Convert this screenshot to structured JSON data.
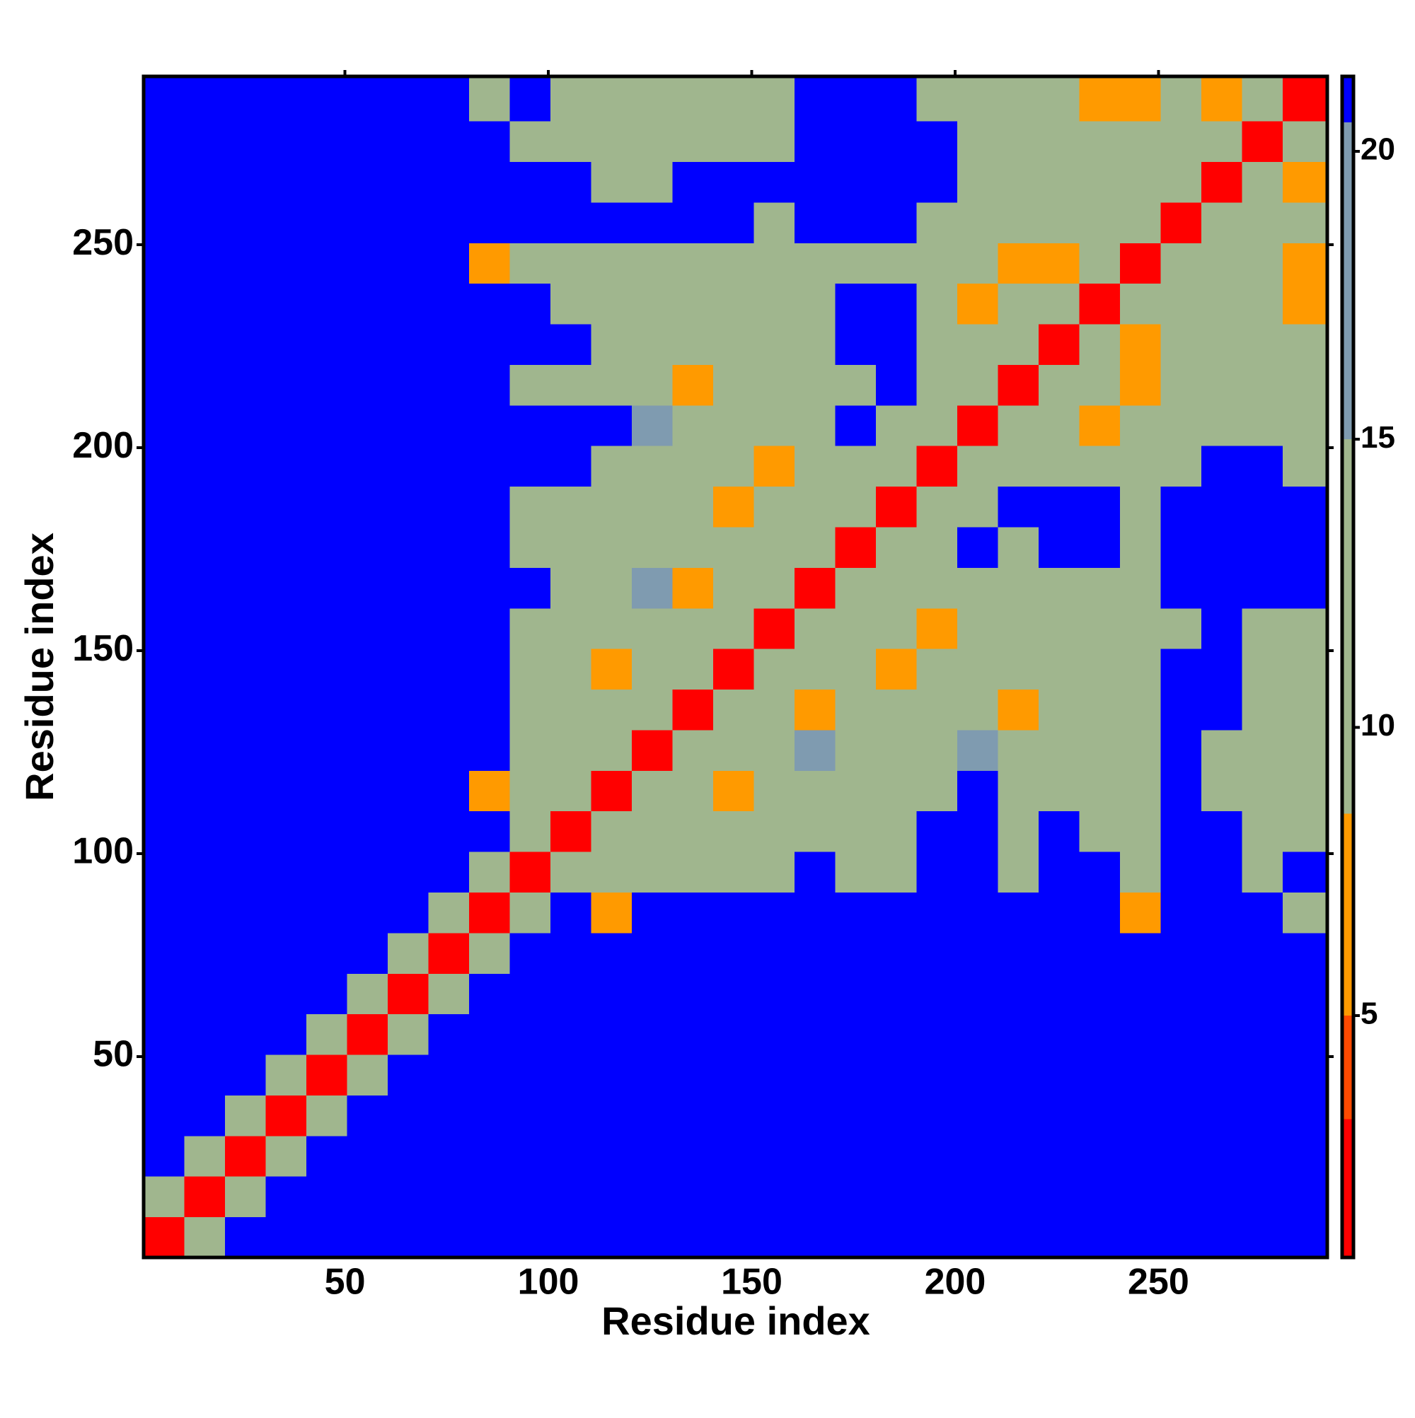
{
  "chart_data": {
    "type": "heatmap",
    "xlabel": "Residue index",
    "ylabel": "Residue index",
    "xlim": [
      0.5,
      291.5
    ],
    "ylim": [
      0.5,
      291.5
    ],
    "xticks": [
      50,
      100,
      150,
      200,
      250
    ],
    "yticks": [
      50,
      100,
      150,
      200,
      250
    ],
    "xbins": [
      0.5,
      10.5,
      20.5,
      30.5,
      40.5,
      50.5,
      60.5,
      70.5,
      80.5,
      90.5,
      100.5,
      110.5,
      120.5,
      130.5,
      140.5,
      150.5,
      160.5,
      170.5,
      180.5,
      190.5,
      200.5,
      210.5,
      220.5,
      230.5,
      240.5,
      250.5,
      260.5,
      270.5,
      280.5,
      291.5
    ],
    "ybins": [
      0.5,
      10.5,
      20.5,
      30.5,
      40.5,
      50.5,
      60.5,
      70.5,
      80.5,
      90.5,
      100.5,
      110.5,
      120.5,
      130.5,
      140.5,
      150.5,
      160.5,
      170.5,
      180.5,
      190.5,
      200.5,
      210.5,
      220.5,
      230.5,
      240.5,
      250.5,
      260.5,
      270.5,
      280.5,
      291.5
    ],
    "zlim": [
      0.8,
      21.3
    ],
    "zticks": [
      5,
      10,
      15,
      20
    ],
    "colorscale": [
      [
        3.2,
        "#ff0000"
      ],
      [
        5,
        "#ff4a00"
      ],
      [
        8.5,
        "#ff9a00"
      ],
      [
        15,
        "#a0b68e"
      ],
      [
        20.5,
        "#7f9bb0"
      ],
      [
        21.3,
        "#0000ff"
      ]
    ],
    "values": [
      [
        3,
        10,
        21,
        21,
        21,
        21,
        21,
        21,
        21,
        21,
        21,
        21,
        21,
        21,
        21,
        21,
        21,
        21,
        21,
        21,
        21,
        21,
        21,
        21,
        21,
        21,
        21,
        21,
        21
      ],
      [
        10,
        3,
        10,
        21,
        21,
        21,
        21,
        21,
        21,
        21,
        21,
        21,
        21,
        21,
        21,
        21,
        21,
        21,
        21,
        21,
        21,
        21,
        21,
        21,
        21,
        21,
        21,
        21,
        21
      ],
      [
        21,
        10,
        3,
        10,
        21,
        21,
        21,
        21,
        21,
        21,
        21,
        21,
        21,
        21,
        21,
        21,
        21,
        21,
        21,
        21,
        21,
        21,
        21,
        21,
        21,
        21,
        21,
        21,
        21
      ],
      [
        21,
        21,
        10,
        3,
        10,
        21,
        21,
        21,
        21,
        21,
        21,
        21,
        21,
        21,
        21,
        21,
        21,
        21,
        21,
        21,
        21,
        21,
        21,
        21,
        21,
        21,
        21,
        21,
        21
      ],
      [
        21,
        21,
        21,
        10,
        3,
        10,
        21,
        21,
        21,
        21,
        21,
        21,
        21,
        21,
        21,
        21,
        21,
        21,
        21,
        21,
        21,
        21,
        21,
        21,
        21,
        21,
        21,
        21,
        21
      ],
      [
        21,
        21,
        21,
        21,
        10,
        3,
        10,
        21,
        21,
        21,
        21,
        21,
        21,
        21,
        21,
        21,
        21,
        21,
        21,
        21,
        21,
        21,
        21,
        21,
        21,
        21,
        21,
        21,
        21
      ],
      [
        21,
        21,
        21,
        21,
        21,
        10,
        3,
        10,
        21,
        21,
        21,
        21,
        21,
        21,
        21,
        21,
        21,
        21,
        21,
        21,
        21,
        21,
        21,
        21,
        21,
        21,
        21,
        21,
        21
      ],
      [
        21,
        21,
        21,
        21,
        21,
        21,
        10,
        3,
        10,
        21,
        21,
        21,
        21,
        21,
        21,
        21,
        21,
        21,
        21,
        21,
        21,
        21,
        21,
        21,
        21,
        21,
        21,
        21,
        21
      ],
      [
        21,
        21,
        21,
        21,
        21,
        21,
        21,
        10,
        3,
        10,
        21,
        7,
        21,
        21,
        21,
        21,
        21,
        21,
        21,
        21,
        21,
        21,
        21,
        21,
        7,
        21,
        21,
        21,
        13
      ],
      [
        21,
        21,
        21,
        21,
        21,
        21,
        21,
        21,
        10,
        3,
        9,
        13,
        13,
        13,
        13,
        13,
        21,
        13,
        13,
        21,
        21,
        13,
        21,
        21,
        13,
        21,
        21,
        13,
        21
      ],
      [
        21,
        21,
        21,
        21,
        21,
        21,
        21,
        21,
        21,
        9,
        3,
        9,
        13,
        13,
        13,
        13,
        13,
        13,
        13,
        21,
        21,
        13,
        21,
        13,
        13,
        21,
        21,
        13,
        13
      ],
      [
        21,
        21,
        21,
        21,
        21,
        21,
        21,
        21,
        7,
        13,
        9,
        3,
        9,
        13,
        7,
        13,
        13,
        13,
        13,
        13,
        21,
        13,
        13,
        13,
        13,
        21,
        13,
        13,
        13
      ],
      [
        21,
        21,
        21,
        21,
        21,
        21,
        21,
        21,
        21,
        13,
        13,
        9,
        3,
        9,
        13,
        13,
        16,
        13,
        13,
        13,
        16,
        13,
        13,
        13,
        13,
        21,
        13,
        13,
        13
      ],
      [
        21,
        21,
        21,
        21,
        21,
        21,
        21,
        21,
        21,
        13,
        13,
        13,
        9,
        3,
        9,
        13,
        7,
        13,
        13,
        13,
        13,
        7,
        13,
        13,
        13,
        21,
        21,
        13,
        13
      ],
      [
        21,
        21,
        21,
        21,
        21,
        21,
        21,
        21,
        21,
        13,
        13,
        7,
        13,
        9,
        3,
        9,
        13,
        13,
        7,
        13,
        13,
        13,
        13,
        13,
        13,
        21,
        21,
        13,
        13
      ],
      [
        21,
        21,
        21,
        21,
        21,
        21,
        21,
        21,
        21,
        13,
        13,
        13,
        13,
        13,
        9,
        3,
        9,
        13,
        13,
        7,
        13,
        13,
        13,
        13,
        13,
        13,
        21,
        13,
        13
      ],
      [
        21,
        21,
        21,
        21,
        21,
        21,
        21,
        21,
        21,
        21,
        13,
        13,
        16,
        7,
        13,
        9,
        3,
        9,
        13,
        13,
        13,
        13,
        13,
        13,
        13,
        21,
        21,
        21,
        21
      ],
      [
        21,
        21,
        21,
        21,
        21,
        21,
        21,
        21,
        21,
        13,
        13,
        13,
        13,
        13,
        13,
        13,
        9,
        3,
        9,
        13,
        21,
        13,
        21,
        21,
        13,
        21,
        21,
        21,
        21
      ],
      [
        21,
        21,
        21,
        21,
        21,
        21,
        21,
        21,
        21,
        13,
        13,
        13,
        13,
        13,
        7,
        13,
        13,
        9,
        3,
        9,
        13,
        21,
        21,
        21,
        13,
        21,
        21,
        21,
        21
      ],
      [
        21,
        21,
        21,
        21,
        21,
        21,
        21,
        21,
        21,
        21,
        21,
        13,
        13,
        13,
        13,
        7,
        13,
        13,
        9,
        3,
        9,
        13,
        13,
        13,
        13,
        13,
        21,
        21,
        13
      ],
      [
        21,
        21,
        21,
        21,
        21,
        21,
        21,
        21,
        21,
        21,
        21,
        21,
        16,
        13,
        13,
        13,
        13,
        21,
        13,
        9,
        3,
        9,
        13,
        7,
        13,
        13,
        13,
        13,
        13
      ],
      [
        21,
        21,
        21,
        21,
        21,
        21,
        21,
        21,
        21,
        13,
        13,
        13,
        13,
        7,
        13,
        13,
        13,
        13,
        21,
        13,
        9,
        3,
        9,
        13,
        7,
        13,
        13,
        13,
        13
      ],
      [
        21,
        21,
        21,
        21,
        21,
        21,
        21,
        21,
        21,
        21,
        21,
        13,
        13,
        13,
        13,
        13,
        13,
        21,
        21,
        13,
        13,
        9,
        3,
        9,
        7,
        13,
        13,
        13,
        13
      ],
      [
        21,
        21,
        21,
        21,
        21,
        21,
        21,
        21,
        21,
        21,
        13,
        13,
        13,
        13,
        13,
        13,
        13,
        21,
        21,
        13,
        7,
        13,
        9,
        3,
        9,
        13,
        13,
        13,
        7
      ],
      [
        21,
        21,
        21,
        21,
        21,
        21,
        21,
        21,
        7,
        13,
        13,
        13,
        13,
        13,
        13,
        13,
        13,
        13,
        13,
        13,
        13,
        7,
        7,
        9,
        3,
        9,
        13,
        13,
        7
      ],
      [
        21,
        21,
        21,
        21,
        21,
        21,
        21,
        21,
        21,
        21,
        21,
        21,
        21,
        21,
        21,
        13,
        21,
        21,
        21,
        13,
        13,
        13,
        13,
        13,
        9,
        3,
        9,
        13,
        13
      ],
      [
        21,
        21,
        21,
        21,
        21,
        21,
        21,
        21,
        21,
        21,
        21,
        13,
        13,
        21,
        21,
        21,
        21,
        21,
        21,
        21,
        13,
        13,
        13,
        13,
        13,
        9,
        3,
        9,
        7
      ],
      [
        21,
        21,
        21,
        21,
        21,
        21,
        21,
        21,
        21,
        13,
        13,
        13,
        13,
        13,
        13,
        13,
        21,
        21,
        21,
        21,
        13,
        13,
        13,
        13,
        13,
        13,
        9,
        3,
        9
      ],
      [
        21,
        21,
        21,
        21,
        21,
        21,
        21,
        21,
        13,
        21,
        13,
        13,
        13,
        13,
        13,
        13,
        21,
        21,
        21,
        13,
        13,
        13,
        13,
        7,
        7,
        13,
        7,
        9,
        3
      ]
    ]
  }
}
